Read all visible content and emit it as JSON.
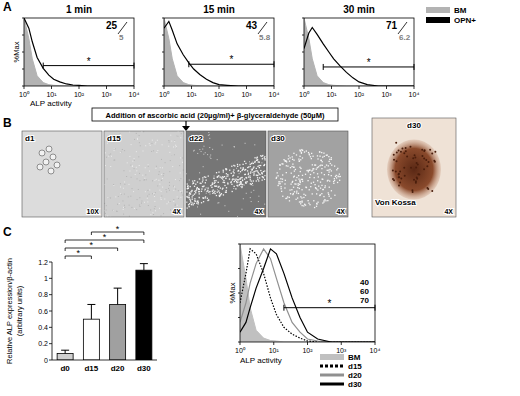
{
  "panel_labels": [
    "A",
    "B",
    "C"
  ],
  "treatment": "Addition of ascorbic acid (20µg/ml)+ β-glyceraldehyde (50µM)",
  "images": [
    {
      "label": "d1",
      "magnification": "10X"
    },
    {
      "label": "d15",
      "magnification": "4X"
    },
    {
      "label": "d22",
      "magnification": "4X"
    },
    {
      "label": "d30",
      "magnification": "4X"
    },
    {
      "label": "d30",
      "magnification": "4X",
      "stain": "Von Kossa"
    }
  ],
  "chart_data": [
    {
      "type": "line",
      "title": "1 min",
      "x_label": "ALP activity",
      "y_label": "%Max",
      "log": "x",
      "xlim": [
        1,
        10000
      ],
      "ylim": [
        0,
        100
      ],
      "xticks": [
        {
          "value": 1,
          "label": "10⁰"
        },
        {
          "value": 10,
          "label": "10¹"
        },
        {
          "value": 100,
          "label": "10²"
        },
        {
          "value": 1000,
          "label": "10³"
        },
        {
          "value": 10000,
          "label": "10⁴"
        }
      ],
      "yticks": [
        0,
        25,
        50,
        75,
        100
      ],
      "tick_labels": "x",
      "x": [
        1,
        1.5,
        2,
        3,
        5,
        8,
        12,
        20,
        35,
        60,
        100,
        200,
        500,
        1000,
        10000
      ],
      "series": [
        {
          "name": "BM",
          "type": "area",
          "color": "#b3b3b3",
          "values": [
            100,
            70,
            40,
            15,
            5,
            2,
            1,
            0.5,
            0,
            0,
            0,
            0,
            0,
            0,
            0
          ]
        },
        {
          "name": "OPN+",
          "type": "line",
          "color": "#000000",
          "line_style": "solid",
          "values": [
            100,
            85,
            65,
            42,
            26,
            16,
            10,
            6,
            3,
            1.5,
            1,
            0,
            0,
            0,
            0
          ]
        }
      ],
      "gate": {
        "range": [
          5,
          10000
        ],
        "level": 30,
        "label": "*"
      },
      "annotations": [
        {
          "text": "25",
          "color": "#000000"
        },
        {
          "text": "5",
          "color": "#808080"
        }
      ]
    },
    {
      "type": "line",
      "title": "15 min",
      "log": "x",
      "xlim": [
        1,
        10000
      ],
      "ylim": [
        0,
        100
      ],
      "xticks": [
        {
          "value": 1,
          "label": "10⁰"
        },
        {
          "value": 10,
          "label": "10¹"
        },
        {
          "value": 100,
          "label": "10²"
        },
        {
          "value": 1000,
          "label": "10³"
        },
        {
          "value": 10000,
          "label": "10⁴"
        }
      ],
      "yticks": [
        0,
        25,
        50,
        75,
        100
      ],
      "tick_labels": "x",
      "x": [
        1,
        1.5,
        2,
        3,
        5,
        8,
        12,
        20,
        35,
        60,
        100,
        200,
        500,
        1000,
        10000
      ],
      "series": [
        {
          "name": "BM",
          "type": "area",
          "color": "#b3b3b3",
          "values": [
            100,
            70,
            40,
            15,
            5,
            2,
            1,
            0.5,
            0,
            0,
            0,
            0,
            0,
            0,
            0
          ]
        },
        {
          "name": "OPN+",
          "type": "line",
          "color": "#000000",
          "line_style": "solid",
          "values": [
            85,
            95,
            82,
            62,
            46,
            34,
            25,
            17,
            10,
            5,
            2,
            1,
            0,
            0,
            0
          ]
        }
      ],
      "gate": {
        "range": [
          8,
          10000
        ],
        "level": 32,
        "label": "*"
      },
      "annotations": [
        {
          "text": "43",
          "color": "#000000"
        },
        {
          "text": "5.8",
          "color": "#808080"
        }
      ]
    },
    {
      "type": "line",
      "title": "30 min",
      "log": "x",
      "xlim": [
        1,
        10000
      ],
      "ylim": [
        0,
        100
      ],
      "legend": "right",
      "xticks": [
        {
          "value": 1,
          "label": "10⁰"
        },
        {
          "value": 10,
          "label": "10¹"
        },
        {
          "value": 100,
          "label": "10²"
        },
        {
          "value": 1000,
          "label": "10³"
        },
        {
          "value": 10000,
          "label": "10⁴"
        }
      ],
      "yticks": [
        0,
        25,
        50,
        75,
        100
      ],
      "tick_labels": "x",
      "x": [
        1,
        1.5,
        2,
        3,
        5,
        8,
        12,
        20,
        35,
        60,
        100,
        200,
        500,
        1000,
        10000
      ],
      "series": [
        {
          "name": "BM",
          "type": "area",
          "color": "#b3b3b3",
          "values": [
            100,
            70,
            40,
            15,
            5,
            2,
            1,
            0.5,
            0,
            0,
            0,
            0,
            0,
            0,
            0
          ]
        },
        {
          "name": "OPN+",
          "type": "line",
          "color": "#000000",
          "line_style": "solid",
          "values": [
            55,
            78,
            86,
            76,
            62,
            50,
            40,
            30,
            20,
            12,
            6,
            2,
            0,
            0,
            0
          ]
        }
      ],
      "gate": {
        "range": [
          5,
          10000
        ],
        "level": 28,
        "label": "*"
      },
      "annotations": [
        {
          "text": "71",
          "color": "#000000"
        },
        {
          "text": "6.2",
          "color": "#808080"
        }
      ]
    },
    {
      "type": "bar",
      "categories": [
        "d0",
        "d15",
        "d20",
        "d30"
      ],
      "values": [
        0.08,
        0.5,
        0.68,
        1.1
      ],
      "errors": [
        0.04,
        0.18,
        0.2,
        0.08
      ],
      "colors": [
        "#d0d0d0",
        "#ffffff",
        "#a0a0a0",
        "#000000"
      ],
      "ylim": [
        0,
        1.2
      ],
      "yticks": [
        0,
        0.2,
        0.4,
        0.6,
        0.8,
        1,
        1.2
      ],
      "y_label": [
        "Relative ALP expression/β-actin",
        "(arbitrary units)"
      ],
      "significance": [
        {
          "from": 0,
          "to": 1,
          "label": "*"
        },
        {
          "from": 0,
          "to": 2,
          "label": "*"
        },
        {
          "from": 0,
          "to": 3,
          "label": "*"
        },
        {
          "from": 1,
          "to": 3,
          "label": "*"
        }
      ]
    },
    {
      "type": "line",
      "x_label": "ALP activity",
      "y_label": "%Max",
      "log": "x",
      "xlim": [
        1,
        10000
      ],
      "ylim": [
        0,
        100
      ],
      "legend": "bottom",
      "xticks": [
        {
          "value": 1,
          "label": "10⁰"
        },
        {
          "value": 10,
          "label": "10¹"
        },
        {
          "value": 100,
          "label": "10²"
        },
        {
          "value": 1000,
          "label": "10³"
        },
        {
          "value": 10000,
          "label": "10⁴"
        }
      ],
      "yticks": [
        0,
        25,
        50,
        75,
        100
      ],
      "tick_labels": "x",
      "x": [
        1,
        1.5,
        2,
        3,
        5,
        8,
        12,
        20,
        35,
        60,
        100,
        200,
        500,
        1000,
        10000
      ],
      "series": [
        {
          "name": "BM",
          "type": "area",
          "color": "#c0c0c0",
          "values": [
            100,
            65,
            35,
            12,
            4,
            1.5,
            1,
            0,
            0,
            0,
            0,
            0,
            0,
            0,
            0
          ]
        },
        {
          "name": "d15",
          "type": "line",
          "color": "#000000",
          "line_style": "dotted",
          "values": [
            40,
            70,
            95,
            90,
            70,
            45,
            28,
            15,
            8,
            4,
            1,
            0,
            0,
            0,
            0
          ]
        },
        {
          "name": "d20",
          "type": "line",
          "color": "#909090",
          "line_style": "solid",
          "values": [
            20,
            40,
            60,
            80,
            95,
            85,
            65,
            40,
            20,
            10,
            3,
            1,
            0,
            0,
            0
          ]
        },
        {
          "name": "d30",
          "type": "line",
          "color": "#000000",
          "line_style": "solid",
          "values": [
            10,
            20,
            35,
            55,
            75,
            95,
            90,
            70,
            45,
            25,
            10,
            3,
            0,
            0,
            0
          ]
        }
      ],
      "gate": {
        "range": [
          20,
          10000
        ],
        "level": 35,
        "label": "*"
      },
      "annotations": [
        {
          "text": "40",
          "color": "#000000"
        },
        {
          "text": "60",
          "color": "#000000"
        },
        {
          "text": "70",
          "color": "#000000"
        }
      ]
    }
  ]
}
